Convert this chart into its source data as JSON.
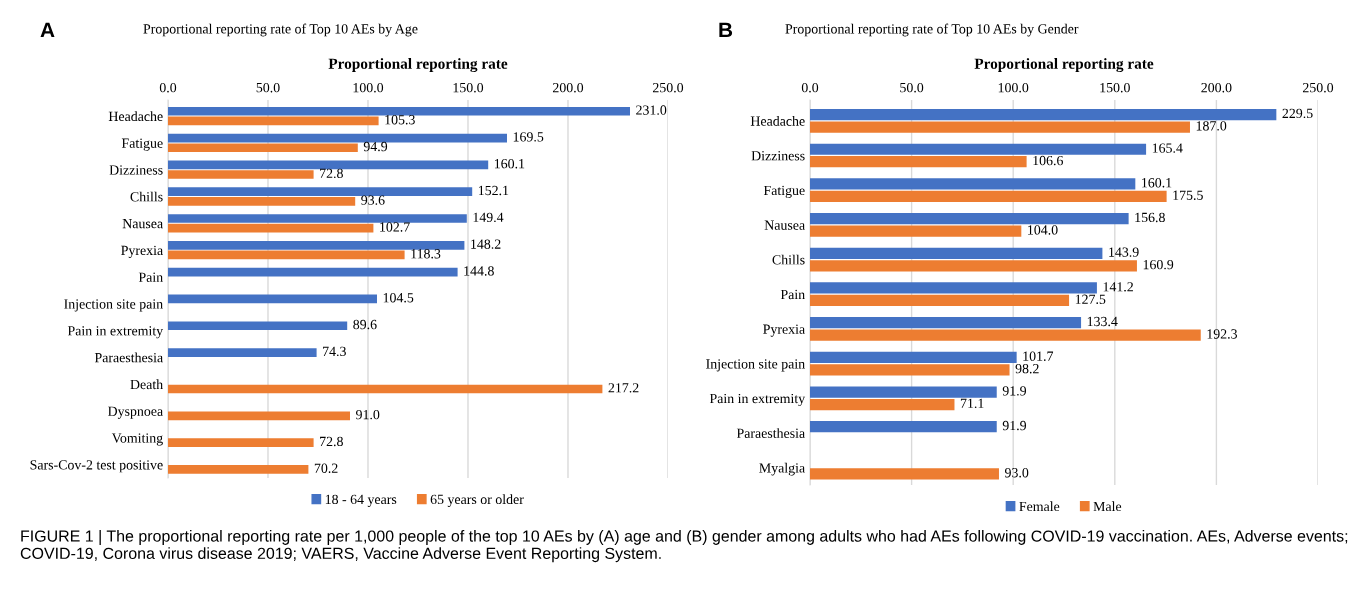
{
  "chart_data": [
    {
      "type": "bar",
      "orientation": "horizontal",
      "title": "Proportional reporting rate of Top 10 AEs by Age",
      "xlabel": "Proportional reporting rate",
      "categories": [
        "Headache",
        "Fatigue",
        "Dizziness",
        "Chills",
        "Nausea",
        "Pyrexia",
        "Pain",
        "Injection site pain",
        "Pain in extremity",
        "Paraesthesia",
        "Death",
        "Dyspnoea",
        "Vomiting",
        "Sars-Cov-2 test positive"
      ],
      "series": [
        {
          "name": "18 - 64 years",
          "color": "#4472c4",
          "values": [
            231.0,
            169.5,
            160.1,
            152.1,
            149.4,
            148.2,
            144.8,
            104.5,
            89.6,
            74.3,
            null,
            null,
            null,
            null
          ],
          "value_labels": [
            "231.0",
            "169.5",
            "160.1",
            "152.1",
            "149.4",
            "148.2",
            "144.8",
            "104.5",
            "89.6",
            "74.3",
            null,
            null,
            null,
            null
          ]
        },
        {
          "name": "65 years or older",
          "color": "#ed7d31",
          "values": [
            105.3,
            94.9,
            72.8,
            93.6,
            102.7,
            118.3,
            null,
            null,
            null,
            null,
            217.2,
            91.0,
            72.8,
            70.2
          ],
          "value_labels": [
            "105.3",
            "94.9",
            "72.8",
            "93.6",
            "102.7",
            "118.3",
            null,
            null,
            null,
            null,
            "217.2",
            "91.0",
            "72.8",
            "70.2"
          ]
        }
      ],
      "xlim": [
        0,
        250
      ],
      "xticks": [
        {
          "value": 0,
          "label": "0.0"
        },
        {
          "value": 50,
          "label": "50.0"
        },
        {
          "value": 100,
          "label": "100.0"
        },
        {
          "value": 150,
          "label": "150.0"
        },
        {
          "value": 200,
          "label": "200.0"
        },
        {
          "value": 250,
          "label": "250.0"
        }
      ],
      "grid": "x",
      "legend": "bottom",
      "annotations": [
        "A"
      ]
    },
    {
      "type": "bar",
      "orientation": "horizontal",
      "title": "Proportional reporting rate of Top 10 AEs by Gender",
      "xlabel": "Proportional reporting rate",
      "categories": [
        "Headache",
        "Dizziness",
        "Fatigue",
        "Nausea",
        "Chills",
        "Pain",
        "Pyrexia",
        "Injection site pain",
        "Pain in extremity",
        "Paraesthesia",
        "Myalgia"
      ],
      "series": [
        {
          "name": "Female",
          "color": "#4472c4",
          "values": [
            229.5,
            165.4,
            160.1,
            156.8,
            143.9,
            141.2,
            133.4,
            101.7,
            91.9,
            91.9,
            null
          ],
          "value_labels": [
            "229.5",
            "165.4",
            "160.1",
            "156.8",
            "143.9",
            "141.2",
            "133.4",
            "101.7",
            "91.9",
            "91.9",
            null
          ]
        },
        {
          "name": "Male",
          "color": "#ed7d31",
          "values": [
            187.0,
            106.6,
            175.5,
            104.0,
            160.9,
            127.5,
            192.3,
            98.2,
            71.1,
            null,
            93.0
          ],
          "value_labels": [
            "187.0",
            "106.6",
            "175.5",
            "104.0",
            "160.9",
            "127.5",
            "192.3",
            "98.2",
            "71.1",
            null,
            "93.0"
          ]
        }
      ],
      "xlim": [
        0,
        250
      ],
      "xticks": [
        {
          "value": 0,
          "label": "0.0"
        },
        {
          "value": 50,
          "label": "50.0"
        },
        {
          "value": 100,
          "label": "100.0"
        },
        {
          "value": 150,
          "label": "150.0"
        },
        {
          "value": 200,
          "label": "200.0"
        },
        {
          "value": 250,
          "label": "250.0"
        }
      ],
      "grid": "x",
      "legend": "bottom",
      "annotations": [
        "B",
        "FIGURE 1 | The proportional reporting rate per 1,000 people of the top 10 AEs by (A) age and (B) gender among adults who had AEs following COVID-19 vaccination. AEs, Adverse events; COVID-19, Corona virus disease 2019; VAERS, Vaccine Adverse Event Reporting System."
      ]
    }
  ]
}
